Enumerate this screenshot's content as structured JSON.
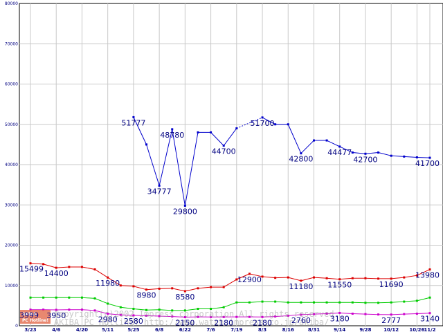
{
  "chart_data": {
    "type": "line",
    "ylim": [
      0,
      80000
    ],
    "yticks": [
      "0",
      "10000",
      "20000",
      "30000",
      "40000",
      "50000",
      "60000",
      "70000",
      "80000"
    ],
    "x": [
      "3/23",
      "3/30",
      "4/6",
      "4/13",
      "4/20",
      "4/27",
      "5/11",
      "5/18",
      "5/25",
      "6/1",
      "6/8",
      "6/15",
      "6/22",
      "6/29",
      "7/6",
      "7/13",
      "7/19",
      "7/26",
      "8/3",
      "8/9",
      "8/16",
      "8/24",
      "8/31",
      "9/7",
      "9/14",
      "9/21",
      "9/28",
      "10/5",
      "10/12",
      "10/19",
      "10/26",
      "11/2"
    ],
    "xtick_labels": [
      "3/23",
      "4/6",
      "4/20",
      "5/11",
      "5/25",
      "6/8",
      "6/22",
      "7/6",
      "7/19",
      "8/3",
      "8/16",
      "8/31",
      "9/14",
      "9/28",
      "10/12",
      "10/26",
      "11/2"
    ],
    "grid": true,
    "series": [
      {
        "color": "#0000cc",
        "values": [
          null,
          null,
          null,
          null,
          null,
          null,
          null,
          null,
          51777,
          45000,
          34777,
          48780,
          29800,
          48000,
          48000,
          44700,
          49000,
          null,
          51700,
          50000,
          50000,
          42800,
          46000,
          46000,
          44477,
          43000,
          42700,
          43000,
          42200,
          42000,
          41800,
          41700
        ],
        "dashed_gaps": [
          [
            16,
            18
          ]
        ]
      },
      {
        "color": "#dd0000",
        "values": [
          15499,
          15300,
          14400,
          14600,
          14600,
          14000,
          11980,
          10000,
          9800,
          8980,
          9200,
          9300,
          8580,
          9300,
          9600,
          9600,
          11500,
          12900,
          12200,
          11900,
          12000,
          11180,
          12000,
          11800,
          11550,
          11800,
          11800,
          11700,
          11690,
          12000,
          12500,
          13980
        ]
      },
      {
        "color": "#00cc00",
        "values": [
          7000,
          7000,
          7000,
          7000,
          7000,
          6800,
          5500,
          4600,
          4200,
          3900,
          4000,
          3800,
          3800,
          4200,
          4200,
          4600,
          5800,
          5800,
          6000,
          6000,
          5800,
          5800,
          5800,
          5800,
          5800,
          5800,
          5700,
          5700,
          5800,
          6000,
          6200,
          7000
        ]
      },
      {
        "color": "#cc00cc",
        "values": [
          3999,
          3999,
          3950,
          4000,
          4000,
          3800,
          2980,
          2700,
          2580,
          2500,
          2400,
          2300,
          2150,
          2200,
          2180,
          2180,
          2200,
          2200,
          2180,
          2300,
          2500,
          2760,
          2900,
          3000,
          3180,
          3000,
          2900,
          2800,
          2777,
          2900,
          3000,
          3140
        ]
      }
    ],
    "data_labels": [
      {
        "series": 0,
        "index": 8,
        "text": "51777"
      },
      {
        "series": 0,
        "index": 10,
        "text": "34777"
      },
      {
        "series": 0,
        "index": 11,
        "text": "48780"
      },
      {
        "series": 0,
        "index": 12,
        "text": "29800"
      },
      {
        "series": 0,
        "index": 15,
        "text": "44700"
      },
      {
        "series": 0,
        "index": 18,
        "text": "51700"
      },
      {
        "series": 0,
        "index": 21,
        "text": "42800"
      },
      {
        "series": 0,
        "index": 24,
        "text": "44477"
      },
      {
        "series": 0,
        "index": 26,
        "text": "42700"
      },
      {
        "series": 0,
        "index": 31,
        "text": "41700"
      },
      {
        "series": 1,
        "index": 0,
        "text": "15499"
      },
      {
        "series": 1,
        "index": 2,
        "text": "14400"
      },
      {
        "series": 1,
        "index": 6,
        "text": "11980"
      },
      {
        "series": 1,
        "index": 9,
        "text": "8980"
      },
      {
        "series": 1,
        "index": 12,
        "text": "8580"
      },
      {
        "series": 1,
        "index": 17,
        "text": "12900"
      },
      {
        "series": 1,
        "index": 21,
        "text": "11180"
      },
      {
        "series": 1,
        "index": 24,
        "text": "11550"
      },
      {
        "series": 1,
        "index": 28,
        "text": "11690"
      },
      {
        "series": 1,
        "index": 31,
        "text": "13980"
      },
      {
        "series": 3,
        "index": 0,
        "text": "3999"
      },
      {
        "series": 3,
        "index": 2,
        "text": "3950"
      },
      {
        "series": 3,
        "index": 6,
        "text": "2980"
      },
      {
        "series": 3,
        "index": 8,
        "text": "2580"
      },
      {
        "series": 3,
        "index": 12,
        "text": "2150"
      },
      {
        "series": 3,
        "index": 15,
        "text": "2180"
      },
      {
        "series": 3,
        "index": 18,
        "text": "2180"
      },
      {
        "series": 3,
        "index": 21,
        "text": "2760"
      },
      {
        "series": 3,
        "index": 24,
        "text": "3180"
      },
      {
        "series": 3,
        "index": 28,
        "text": "2777"
      },
      {
        "series": 3,
        "index": 31,
        "text": "3140"
      }
    ]
  },
  "watermark": {
    "line1": "Copyright(c)2002 Impress corporation All rights reserved.",
    "line2": "AKIBA PC Hotline! http://www.watch.impress.co.jp/akiba/",
    "logo_line1": "AKIBA",
    "logo_line2": "PC Hotline!"
  }
}
